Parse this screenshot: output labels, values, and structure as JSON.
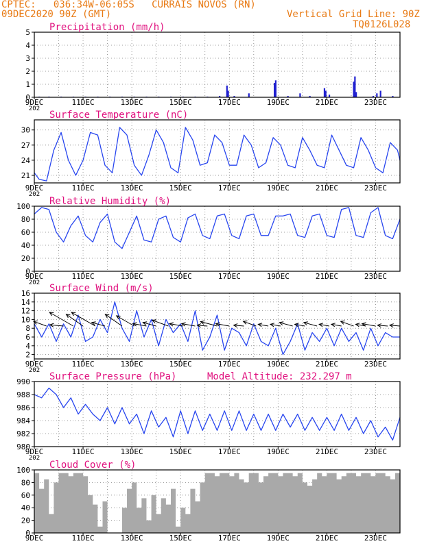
{
  "header": {
    "left_line1": "CPTEC:   036:34W-06:05S   CURRAIS NOVOS (RN)",
    "left_line2": "09DEC2020 90Z (GMT)",
    "right_line1": "Vertical Grid Line: 90Z",
    "right_line2": "TQ0126L028"
  },
  "colors": {
    "title": "#e0107e",
    "header": "#e87a14",
    "line": "#2846ef",
    "bar": "#2020d0",
    "cloud": "#a9a9a9",
    "wind_arrow": "#000000",
    "grid": "#808080"
  },
  "x_axis": {
    "start_day": 9,
    "end_day": 24,
    "tick_labels": [
      "9DEC",
      "11DEC",
      "13DEC",
      "15DEC",
      "17DEC",
      "19DEC",
      "21DEC",
      "23DEC"
    ],
    "tick_days": [
      9,
      11,
      13,
      15,
      17,
      19,
      21,
      23
    ],
    "year_fragment": "202"
  },
  "chart_data": [
    {
      "type": "bar",
      "title": "Precipitation (mm/h)",
      "ylim": [
        0,
        5
      ],
      "yticks": [
        0,
        1,
        2,
        3,
        4,
        5
      ],
      "x_days": [
        9.2,
        9.6,
        10.1,
        10.6,
        11.1,
        11.6,
        12.1,
        12.6,
        13.1,
        13.6,
        14.1,
        14.6,
        15.1,
        15.6,
        16.1,
        16.6,
        16.9,
        16.95,
        17.2,
        17.8,
        18.85,
        18.9,
        19.4,
        19.9,
        20.3,
        20.9,
        20.95,
        21.1,
        22.1,
        22.15,
        22.2,
        22.9,
        23.05,
        23.2,
        23.7
      ],
      "values": [
        0.05,
        0.05,
        0.05,
        0.05,
        0.05,
        0.05,
        0.05,
        0.05,
        0.05,
        0.05,
        0.05,
        0.05,
        0.05,
        0.05,
        0.05,
        0.1,
        0.9,
        0.5,
        0.1,
        0.3,
        1.1,
        1.3,
        0.1,
        0.3,
        0.1,
        0.7,
        0.5,
        0.2,
        1.2,
        1.6,
        0.4,
        0.1,
        0.3,
        0.5,
        0.1
      ]
    },
    {
      "type": "line",
      "title": "Surface Temperature (nC)",
      "ylim": [
        19.5,
        32.0
      ],
      "yticks": [
        21,
        24,
        27,
        30
      ],
      "x_days": [
        9.0,
        9.2,
        9.5,
        9.8,
        10.1,
        10.4,
        10.7,
        11.0,
        11.3,
        11.6,
        11.9,
        12.2,
        12.5,
        12.8,
        13.1,
        13.4,
        13.7,
        14.0,
        14.3,
        14.6,
        14.9,
        15.2,
        15.5,
        15.8,
        16.1,
        16.4,
        16.7,
        17.0,
        17.3,
        17.6,
        17.9,
        18.2,
        18.5,
        18.8,
        19.1,
        19.4,
        19.7,
        20.0,
        20.3,
        20.6,
        20.9,
        21.2,
        21.5,
        21.8,
        22.1,
        22.4,
        22.7,
        23.0,
        23.3,
        23.6,
        23.9,
        24.0
      ],
      "values": [
        21.5,
        20.2,
        19.9,
        26.0,
        29.5,
        24.0,
        21.0,
        24.0,
        29.5,
        29.0,
        23.0,
        21.5,
        30.5,
        29.0,
        23.0,
        21.0,
        25.0,
        30.0,
        27.5,
        22.5,
        21.5,
        30.5,
        28.0,
        23.0,
        23.5,
        29.0,
        27.5,
        23.0,
        23.0,
        29.0,
        27.0,
        22.5,
        23.5,
        28.5,
        27.0,
        23.0,
        22.5,
        28.5,
        26.0,
        23.0,
        22.5,
        29.0,
        26.0,
        23.0,
        22.5,
        28.5,
        26.0,
        22.5,
        21.5,
        27.5,
        26.0,
        24.0
      ]
    },
    {
      "type": "line",
      "title": "Relative Humidity (%)",
      "ylim": [
        0,
        100
      ],
      "yticks": [
        0,
        20,
        40,
        60,
        80,
        100
      ],
      "x_days": [
        9.0,
        9.3,
        9.6,
        9.9,
        10.2,
        10.5,
        10.8,
        11.1,
        11.4,
        11.7,
        12.0,
        12.3,
        12.6,
        12.9,
        13.2,
        13.5,
        13.8,
        14.1,
        14.4,
        14.7,
        15.0,
        15.3,
        15.6,
        15.9,
        16.2,
        16.5,
        16.8,
        17.1,
        17.4,
        17.7,
        18.0,
        18.3,
        18.6,
        18.9,
        19.2,
        19.5,
        19.8,
        20.1,
        20.4,
        20.7,
        21.0,
        21.3,
        21.6,
        21.9,
        22.2,
        22.5,
        22.8,
        23.1,
        23.4,
        23.7,
        24.0
      ],
      "values": [
        88,
        98,
        95,
        60,
        45,
        70,
        85,
        55,
        45,
        75,
        88,
        45,
        35,
        60,
        85,
        48,
        45,
        80,
        85,
        52,
        45,
        82,
        88,
        55,
        50,
        85,
        88,
        55,
        50,
        85,
        88,
        55,
        55,
        85,
        85,
        88,
        55,
        52,
        85,
        88,
        55,
        52,
        95,
        98,
        55,
        52,
        90,
        98,
        55,
        50,
        80
      ]
    },
    {
      "type": "line",
      "title": "Surface Wind (m/s)",
      "ylim": [
        1,
        16
      ],
      "yticks": [
        2,
        4,
        6,
        8,
        10,
        12,
        14,
        16
      ],
      "x_days": [
        9.0,
        9.3,
        9.6,
        9.9,
        10.2,
        10.5,
        10.8,
        11.1,
        11.4,
        11.7,
        12.0,
        12.3,
        12.6,
        12.9,
        13.2,
        13.5,
        13.8,
        14.1,
        14.4,
        14.7,
        15.0,
        15.3,
        15.6,
        15.9,
        16.2,
        16.5,
        16.8,
        17.1,
        17.4,
        17.7,
        18.0,
        18.3,
        18.6,
        18.9,
        19.2,
        19.5,
        19.8,
        20.1,
        20.4,
        20.7,
        21.0,
        21.3,
        21.6,
        21.9,
        22.2,
        22.5,
        22.8,
        23.1,
        23.4,
        23.7,
        24.0
      ],
      "values": [
        9,
        6,
        9,
        5,
        9,
        6,
        11,
        5,
        6,
        10,
        7,
        14,
        8,
        5,
        12,
        6,
        10,
        4,
        10,
        7,
        9,
        5,
        12,
        3,
        6,
        11,
        3,
        8,
        7,
        4,
        9,
        5,
        4,
        8,
        2,
        5,
        9,
        3,
        7,
        5,
        8,
        4,
        8,
        5,
        7,
        3,
        8,
        4,
        7,
        6,
        6
      ],
      "arrows": {
        "x_days": [
          9.5,
          10.2,
          10.6,
          11.0,
          11.5,
          11.9,
          12.6,
          13.1,
          13.6,
          14.0,
          14.5,
          15.1,
          15.6,
          16.1,
          16.5,
          17.0,
          17.6,
          18.1,
          18.6,
          19.1,
          19.6,
          20.1,
          20.6,
          21.1,
          21.6,
          22.1,
          22.6,
          23.0,
          23.5,
          24.0
        ],
        "speed": [
          4,
          4,
          8,
          6,
          8,
          4,
          6,
          6,
          4,
          4,
          5,
          4,
          4,
          3,
          5,
          4,
          3,
          4,
          3,
          3,
          4,
          3,
          4,
          3,
          3,
          4,
          3,
          4,
          3,
          3
        ],
        "direction_deg": [
          110,
          95,
          120,
          125,
          120,
          105,
          125,
          120,
          100,
          105,
          110,
          100,
          100,
          95,
          105,
          100,
          95,
          110,
          100,
          100,
          105,
          100,
          105,
          100,
          100,
          110,
          100,
          100,
          95,
          95
        ]
      }
    },
    {
      "type": "line",
      "title": "Surface Pressure (hPa)",
      "subtitle": "Model Altitude: 232.297 m",
      "ylim": [
        980,
        990
      ],
      "yticks": [
        980,
        982,
        984,
        986,
        988,
        990
      ],
      "x_days": [
        9.0,
        9.3,
        9.6,
        9.9,
        10.2,
        10.5,
        10.8,
        11.1,
        11.4,
        11.7,
        12.0,
        12.3,
        12.6,
        12.9,
        13.2,
        13.5,
        13.8,
        14.1,
        14.4,
        14.7,
        15.0,
        15.3,
        15.6,
        15.9,
        16.2,
        16.5,
        16.8,
        17.1,
        17.4,
        17.7,
        18.0,
        18.3,
        18.6,
        18.9,
        19.2,
        19.5,
        19.8,
        20.1,
        20.4,
        20.7,
        21.0,
        21.3,
        21.6,
        21.9,
        22.2,
        22.5,
        22.8,
        23.1,
        23.4,
        23.7,
        24.0
      ],
      "values": [
        988.0,
        987.5,
        989.0,
        988.0,
        986.0,
        987.5,
        985.0,
        986.5,
        985.0,
        984.0,
        986.0,
        983.5,
        986.0,
        983.5,
        985.0,
        982.0,
        985.5,
        983.0,
        984.5,
        981.5,
        985.5,
        982.0,
        985.5,
        982.5,
        985.0,
        982.5,
        985.5,
        982.5,
        985.5,
        982.5,
        985.0,
        982.5,
        985.0,
        982.5,
        985.0,
        983.0,
        985.0,
        982.5,
        984.5,
        982.5,
        984.5,
        982.5,
        985.0,
        982.5,
        984.5,
        982.0,
        984.0,
        981.5,
        983.0,
        981.0,
        984.5
      ]
    },
    {
      "type": "area",
      "title": "Cloud Cover (%)",
      "ylim": [
        0,
        100
      ],
      "yticks": [
        0,
        20,
        40,
        60,
        80,
        100
      ],
      "x_days": [
        9.0,
        9.2,
        9.4,
        9.6,
        9.8,
        10.0,
        10.2,
        10.4,
        10.6,
        10.8,
        11.0,
        11.2,
        11.4,
        11.6,
        11.8,
        12.0,
        12.2,
        12.4,
        12.6,
        12.8,
        13.0,
        13.2,
        13.4,
        13.6,
        13.8,
        14.0,
        14.2,
        14.4,
        14.6,
        14.8,
        15.0,
        15.2,
        15.4,
        15.6,
        15.8,
        16.0,
        16.2,
        16.4,
        16.6,
        16.8,
        17.0,
        17.2,
        17.4,
        17.6,
        17.8,
        18.0,
        18.2,
        18.4,
        18.6,
        18.8,
        19.0,
        19.2,
        19.4,
        19.6,
        19.8,
        20.0,
        20.2,
        20.4,
        20.6,
        20.8,
        21.0,
        21.2,
        21.4,
        21.6,
        21.8,
        22.0,
        22.2,
        22.4,
        22.6,
        22.8,
        23.0,
        23.2,
        23.4,
        23.6,
        23.8,
        24.0
      ],
      "values": [
        95,
        70,
        85,
        30,
        80,
        95,
        95,
        90,
        95,
        95,
        90,
        60,
        45,
        10,
        50,
        0,
        0,
        0,
        40,
        70,
        80,
        40,
        55,
        20,
        60,
        30,
        55,
        45,
        70,
        10,
        40,
        30,
        70,
        50,
        80,
        95,
        95,
        90,
        95,
        95,
        90,
        95,
        85,
        80,
        95,
        95,
        80,
        90,
        95,
        95,
        90,
        95,
        95,
        90,
        95,
        80,
        75,
        85,
        95,
        90,
        95,
        95,
        85,
        90,
        95,
        95,
        90,
        95,
        95,
        90,
        95,
        95,
        90,
        85,
        95,
        95
      ]
    }
  ]
}
